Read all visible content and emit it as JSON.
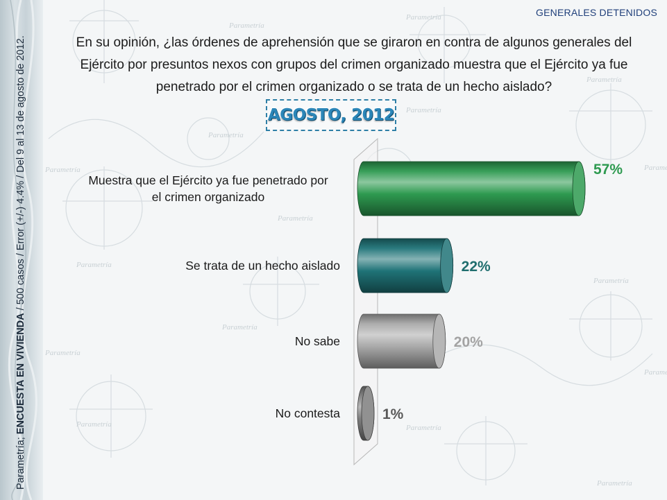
{
  "header": {
    "section": "GENERALES DETENIDOS",
    "question": "En su opinión, ¿las órdenes de aprehensión que se giraron en contra de algunos generales del Ejército por presuntos nexos con grupos del crimen organizado muestra que el Ejército ya fue penetrado por el crimen organizado o se trata de un hecho aislado?",
    "period": "AGOSTO, 2012"
  },
  "source_note": {
    "brand": "Parametría; ",
    "survey": "ENCUESTA EN VIVIENDA",
    "details": " / 500 casos / Error (+/-) 4.4% / Del 9 al 13 de agosto de 2012."
  },
  "watermark": {
    "text": "Parametría"
  },
  "chart_data": {
    "type": "bar",
    "orientation": "horizontal",
    "categories": [
      [
        "Muestra que el Ejército ya fue penetrado por",
        "el crimen organizado"
      ],
      [
        "Se trata de un hecho aislado"
      ],
      [
        "No sabe"
      ],
      [
        "No contesta"
      ]
    ],
    "values": [
      57,
      22,
      20,
      1
    ],
    "value_labels": [
      "57%",
      "22%",
      "20%",
      "1%"
    ],
    "colors": [
      "#2e9a50",
      "#1f7377",
      "#a9a9a9",
      "#7e7e7e"
    ],
    "label_colors": [
      "#2e9a50",
      "#1f6e6e",
      "#a3a3a3",
      "#595959"
    ],
    "xlim": [
      0,
      60
    ],
    "title": "",
    "xlabel": "",
    "ylabel": ""
  }
}
